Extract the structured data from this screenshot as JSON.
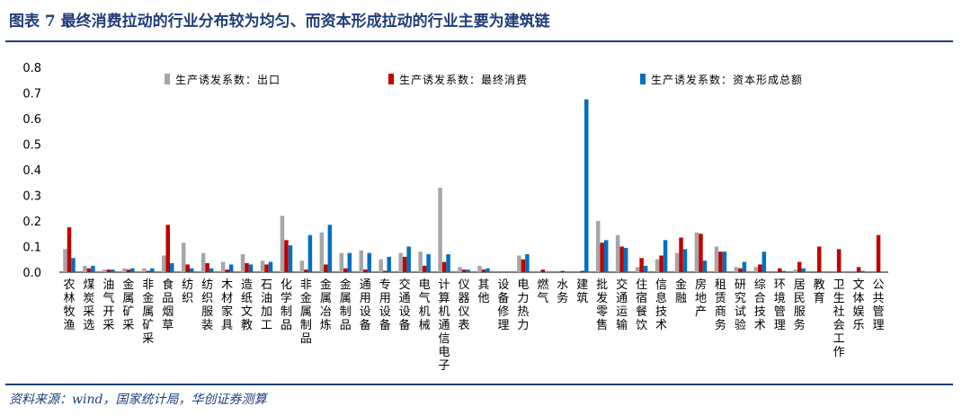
{
  "title": "图表 7  最终消费拉动的行业分布较为均匀、而资本形成拉动的行业主要为建筑链",
  "source": "资料来源：wind，国家统计局，华创证券测算",
  "chart_data": {
    "type": "bar",
    "ylim": [
      0,
      0.8
    ],
    "yticks": [
      "0.0",
      "0.1",
      "0.2",
      "0.3",
      "0.4",
      "0.5",
      "0.6",
      "0.7",
      "0.8"
    ],
    "legend_position": "top",
    "categories": [
      "农林牧渔",
      "煤炭采选",
      "油气开采",
      "金属矿采",
      "非金属矿采",
      "食品烟草",
      "纺织",
      "纺织服装",
      "木材家具",
      "造纸文教",
      "石油加工",
      "化学制品",
      "非金属制品",
      "金属冶炼",
      "金属制品",
      "通用设备",
      "专用设备",
      "交通设备",
      "电气机械",
      "计算机通信电子",
      "仪器仪表",
      "其他",
      "设备修理",
      "电力热力",
      "燃气",
      "水务",
      "建筑",
      "批发零售",
      "交通运输",
      "住宿餐饮",
      "信息技术",
      "金融",
      "房地产",
      "租赁商务",
      "研究试验",
      "综合技术",
      "环境管理",
      "居民服务",
      "教育",
      "卫生社会工作",
      "文体娱乐",
      "公共管理"
    ],
    "series": [
      {
        "name": "生产诱发系数：出口",
        "color": "#a6a6a6",
        "values": [
          0.09,
          0.025,
          0.01,
          0.015,
          0.015,
          0.065,
          0.115,
          0.075,
          0.04,
          0.07,
          0.045,
          0.22,
          0.045,
          0.155,
          0.075,
          0.085,
          0.05,
          0.075,
          0.08,
          0.33,
          0.02,
          0.025,
          0,
          0.065,
          0,
          0,
          0,
          0.2,
          0.145,
          0.02,
          0.05,
          0.075,
          0.155,
          0.1,
          0.02,
          0.02,
          0,
          0.01,
          0,
          0,
          0,
          0
        ]
      },
      {
        "name": "生产诱发系数：最终消费",
        "color": "#c00000",
        "values": [
          0.175,
          0.015,
          0.01,
          0.01,
          0.005,
          0.185,
          0.03,
          0.035,
          0.01,
          0.035,
          0.03,
          0.125,
          0.01,
          0.03,
          0.015,
          0.01,
          0.005,
          0.06,
          0.025,
          0.04,
          0.01,
          0.01,
          0,
          0.05,
          0.01,
          0.005,
          0.005,
          0.115,
          0.1,
          0.055,
          0.065,
          0.135,
          0.15,
          0.08,
          0.015,
          0.03,
          0.015,
          0.04,
          0.1,
          0.09,
          0.02,
          0.145
        ]
      },
      {
        "name": "生产诱发系数：资本形成总额",
        "color": "#0070c0",
        "values": [
          0.055,
          0.025,
          0.01,
          0.015,
          0.015,
          0.035,
          0.015,
          0.015,
          0.03,
          0.03,
          0.04,
          0.105,
          0.145,
          0.185,
          0.075,
          0.075,
          0.06,
          0.1,
          0.07,
          0.07,
          0.01,
          0.015,
          0,
          0.07,
          0,
          0,
          0.675,
          0.125,
          0.095,
          0.025,
          0.125,
          0.09,
          0.045,
          0.08,
          0.04,
          0.08,
          0.005,
          0.015,
          0,
          0,
          0.005,
          0
        ]
      }
    ]
  }
}
